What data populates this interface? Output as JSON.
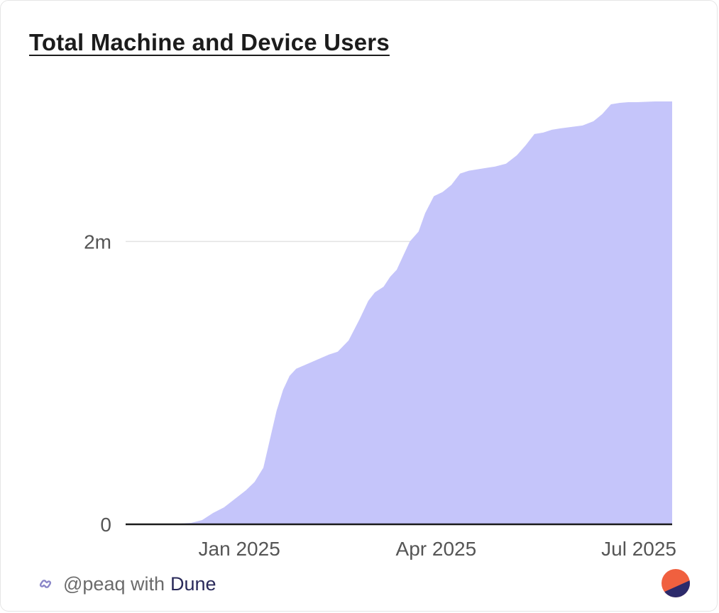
{
  "card": {
    "title": "Total Machine and Device Users"
  },
  "footer": {
    "handle": "@peaq with",
    "brand": "Dune",
    "link_icon": "link-icon",
    "logo_icon": "dune-logo-icon"
  },
  "colors": {
    "area_fill": "#c5c5fa",
    "baseline": "#1a1a1a",
    "gridline": "#e3e3e3",
    "tick_text": "#555555",
    "title_text": "#1c1c1c",
    "logo_top": "#f0603f",
    "logo_bottom": "#2c2a6b"
  },
  "chart_data": {
    "type": "area",
    "title": "Total Machine and Device Users",
    "xlabel": "",
    "ylabel": "",
    "grid": true,
    "legend": "none",
    "x_ticks": [
      {
        "date": "2025-01-01",
        "label": "Jan 2025"
      },
      {
        "date": "2025-04-01",
        "label": "Apr 2025"
      },
      {
        "date": "2025-07-01",
        "label": "Jul 2025"
      }
    ],
    "y_ticks": [
      {
        "value": 0,
        "label": "0"
      },
      {
        "value": 2000000,
        "label": "2m"
      }
    ],
    "xlim": [
      "2024-11-10",
      "2025-07-18"
    ],
    "ylim": [
      0,
      3000000
    ],
    "x": [
      "2024-11-10",
      "2024-12-01",
      "2024-12-10",
      "2024-12-15",
      "2024-12-20",
      "2024-12-25",
      "2024-12-30",
      "2025-01-04",
      "2025-01-08",
      "2025-01-12",
      "2025-01-15",
      "2025-01-18",
      "2025-01-21",
      "2025-01-24",
      "2025-01-27",
      "2025-01-30",
      "2025-02-02",
      "2025-02-05",
      "2025-02-08",
      "2025-02-11",
      "2025-02-15",
      "2025-02-20",
      "2025-02-25",
      "2025-03-01",
      "2025-03-04",
      "2025-03-08",
      "2025-03-11",
      "2025-03-14",
      "2025-03-17",
      "2025-03-20",
      "2025-03-24",
      "2025-03-27",
      "2025-03-31",
      "2025-04-04",
      "2025-04-08",
      "2025-04-12",
      "2025-04-16",
      "2025-04-20",
      "2025-04-24",
      "2025-04-28",
      "2025-05-03",
      "2025-05-08",
      "2025-05-12",
      "2025-05-16",
      "2025-05-20",
      "2025-05-24",
      "2025-05-28",
      "2025-06-02",
      "2025-06-07",
      "2025-06-12",
      "2025-06-16",
      "2025-06-20",
      "2025-06-24",
      "2025-06-28",
      "2025-07-02",
      "2025-07-10",
      "2025-07-18"
    ],
    "series": [
      {
        "values": [
          0,
          2000,
          10000,
          30000,
          80000,
          120000,
          180000,
          240000,
          300000,
          400000,
          600000,
          800000,
          950000,
          1050000,
          1100000,
          1120000,
          1140000,
          1160000,
          1180000,
          1200000,
          1220000,
          1300000,
          1450000,
          1580000,
          1640000,
          1680000,
          1750000,
          1800000,
          1900000,
          2000000,
          2070000,
          2200000,
          2320000,
          2350000,
          2400000,
          2480000,
          2500000,
          2510000,
          2520000,
          2530000,
          2550000,
          2610000,
          2680000,
          2760000,
          2770000,
          2790000,
          2800000,
          2810000,
          2820000,
          2850000,
          2900000,
          2970000,
          2980000,
          2985000,
          2985000,
          2990000,
          2990000
        ]
      }
    ]
  }
}
